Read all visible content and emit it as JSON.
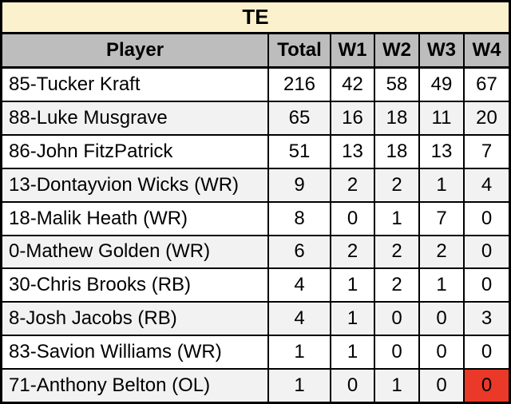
{
  "chart_data": {
    "type": "table",
    "title": "TE",
    "columns": [
      "Player",
      "Total",
      "W1",
      "W2",
      "W3",
      "W4"
    ],
    "rows": [
      [
        "85-Tucker Kraft",
        "216",
        "42",
        "58",
        "49",
        "67"
      ],
      [
        "88-Luke Musgrave",
        "65",
        "16",
        "18",
        "11",
        "20"
      ],
      [
        "86-John FitzPatrick",
        "51",
        "13",
        "18",
        "13",
        "7"
      ],
      [
        "13-Dontayvion Wicks (WR)",
        "9",
        "2",
        "2",
        "1",
        "4"
      ],
      [
        "18-Malik Heath (WR)",
        "8",
        "0",
        "1",
        "7",
        "0"
      ],
      [
        "0-Mathew Golden (WR)",
        "6",
        "2",
        "2",
        "2",
        "0"
      ],
      [
        "30-Chris Brooks (RB)",
        "4",
        "1",
        "2",
        "1",
        "0"
      ],
      [
        "8-Josh Jacobs (RB)",
        "4",
        "1",
        "0",
        "0",
        "3"
      ],
      [
        "83-Savion Williams (WR)",
        "1",
        "1",
        "0",
        "0",
        "0"
      ],
      [
        "71-Anthony Belton (OL)",
        "1",
        "0",
        "1",
        "0",
        "0"
      ]
    ],
    "highlighted_cell": {
      "row_index": 9,
      "column": "W4",
      "value": "0"
    },
    "layout": {
      "zebra_striping": true,
      "grid": true,
      "legend": "none"
    }
  },
  "colors": {
    "title_bg": "#fcf1cd",
    "header_bg": "#bdbdbd",
    "row_bg": "#ffffff",
    "row_alt_bg": "#f2f2f2",
    "border": "#000000",
    "highlight_bg": "#ea3829",
    "text": "#000000"
  }
}
